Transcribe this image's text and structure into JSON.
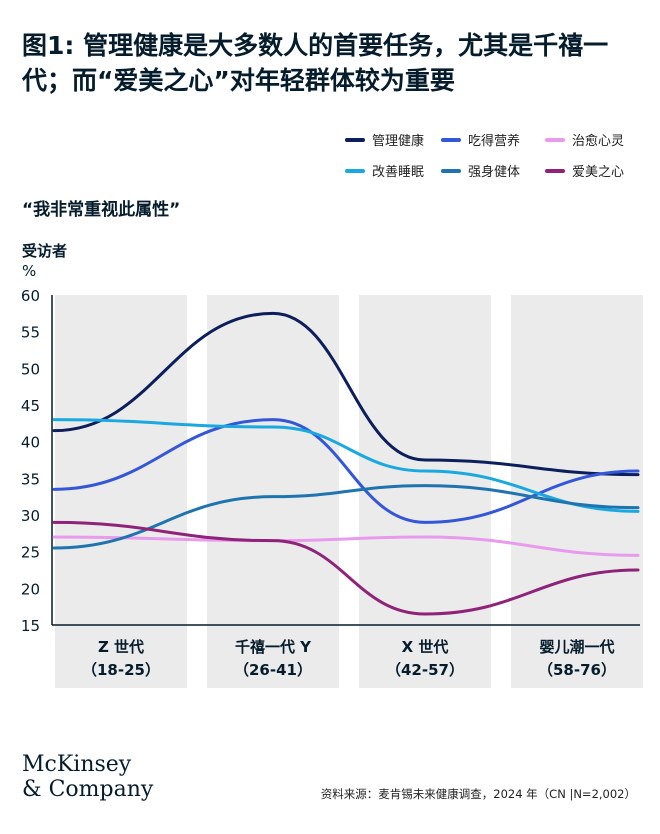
{
  "title": "图1: 管理健康是大多数人的首要任务，尤其是千禧一代；而“爱美之心”对年轻群体较为重要",
  "legend": [
    {
      "label": "管理健康",
      "color": "#0c1e5b"
    },
    {
      "label": "吃得营养",
      "color": "#3457d9"
    },
    {
      "label": "治愈心灵",
      "color": "#e89bec"
    },
    {
      "label": "改善睡眠",
      "color": "#1aa8e0"
    },
    {
      "label": "强身健体",
      "color": "#1f74b0"
    },
    {
      "label": "爱美之心",
      "color": "#8e2379"
    }
  ],
  "chart_data": {
    "type": "line",
    "subtitle": "“我非常重视此属性”",
    "ylabel": "受访者",
    "yunit": "%",
    "ylim": [
      15,
      60
    ],
    "yticks": [
      60,
      55,
      50,
      45,
      40,
      35,
      30,
      25,
      20,
      15
    ],
    "categories": [
      {
        "name": "Z 世代",
        "range": "（18-25）"
      },
      {
        "name": "千禧一代 Y",
        "range": "（26-41）"
      },
      {
        "name": "X 世代",
        "range": "（42-57）"
      },
      {
        "name": "婴儿潮一代",
        "range": "（58-76）"
      }
    ],
    "grid": false,
    "series": [
      {
        "name": "管理健康",
        "color": "#0c1e5b",
        "values": [
          41.5,
          57.5,
          37.5,
          35.5
        ]
      },
      {
        "name": "吃得营养",
        "color": "#3457d9",
        "values": [
          33.5,
          43,
          29,
          36
        ]
      },
      {
        "name": "治愈心灵",
        "color": "#e89bec",
        "values": [
          27,
          26.5,
          27,
          24.5
        ]
      },
      {
        "name": "改善睡眠",
        "color": "#1aa8e0",
        "values": [
          43,
          42,
          36,
          30.5
        ]
      },
      {
        "name": "强身健体",
        "color": "#1f74b0",
        "values": [
          25.5,
          32.5,
          34,
          31
        ]
      },
      {
        "name": "爱美之心",
        "color": "#8e2379",
        "values": [
          29,
          26.5,
          16.5,
          22.5
        ]
      }
    ]
  },
  "logo": {
    "line1": "McKinsey",
    "line2": "& Company"
  },
  "source": "资料来源：麦肯锡未来健康调查，2024 年（CN |N=2,002）"
}
